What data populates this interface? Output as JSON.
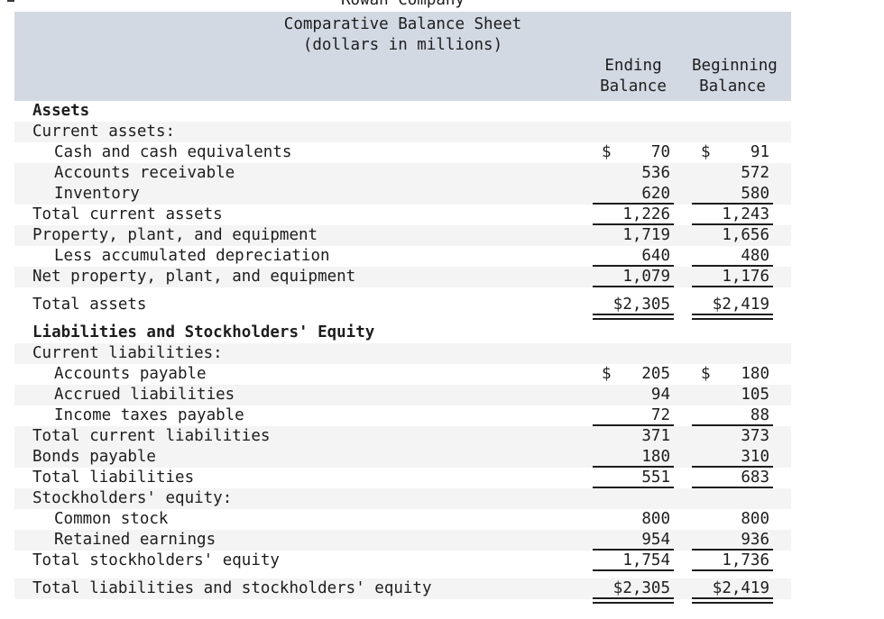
{
  "header": {
    "company": "Rowan Company",
    "title": "Comparative Balance Sheet",
    "subtitle": "(dollars in millions)"
  },
  "columns": {
    "ending": [
      "Ending",
      "Balance"
    ],
    "beginning": [
      "Beginning",
      "Balance"
    ]
  },
  "colors": {
    "header_band": "#d3d9e3",
    "row_shade": "#f4f4f5",
    "text": "#1d1d1d",
    "rule": "#1d1d1d"
  },
  "rows": [
    {
      "label": "Assets",
      "indent": 0,
      "bold": true,
      "shaded": false,
      "gap_before": false,
      "underline": "none",
      "ending": null,
      "beginning": null
    },
    {
      "label": "Current assets:",
      "indent": 0,
      "bold": false,
      "shaded": true,
      "gap_before": false,
      "underline": "none",
      "ending": null,
      "beginning": null
    },
    {
      "label": "Cash and cash equivalents",
      "indent": 1,
      "bold": false,
      "shaded": false,
      "gap_before": false,
      "underline": "none",
      "ending": {
        "dollar": true,
        "value": "70"
      },
      "beginning": {
        "dollar": true,
        "value": "91"
      }
    },
    {
      "label": "Accounts receivable",
      "indent": 1,
      "bold": false,
      "shaded": true,
      "gap_before": false,
      "underline": "none",
      "ending": {
        "dollar": false,
        "value": "536"
      },
      "beginning": {
        "dollar": false,
        "value": "572"
      }
    },
    {
      "label": "Inventory",
      "indent": 1,
      "bold": false,
      "shaded": true,
      "gap_before": false,
      "underline": "single",
      "ending": {
        "dollar": false,
        "value": "620"
      },
      "beginning": {
        "dollar": false,
        "value": "580"
      }
    },
    {
      "label": "Total current assets",
      "indent": 0,
      "bold": false,
      "shaded": false,
      "gap_before": false,
      "underline": "single",
      "ending": {
        "dollar": false,
        "value": "1,226"
      },
      "beginning": {
        "dollar": false,
        "value": "1,243"
      }
    },
    {
      "label": "Property, plant, and equipment",
      "indent": 0,
      "bold": false,
      "shaded": true,
      "gap_before": false,
      "underline": "none",
      "ending": {
        "dollar": false,
        "value": "1,719"
      },
      "beginning": {
        "dollar": false,
        "value": "1,656"
      }
    },
    {
      "label": "Less accumulated depreciation",
      "indent": 1,
      "bold": false,
      "shaded": false,
      "gap_before": false,
      "underline": "single",
      "ending": {
        "dollar": false,
        "value": "640"
      },
      "beginning": {
        "dollar": false,
        "value": "480"
      }
    },
    {
      "label": "Net property, plant, and equipment",
      "indent": 0,
      "bold": false,
      "shaded": true,
      "gap_before": false,
      "underline": "single",
      "ending": {
        "dollar": false,
        "value": "1,079"
      },
      "beginning": {
        "dollar": false,
        "value": "1,176"
      }
    },
    {
      "label": "Total assets",
      "indent": 0,
      "bold": false,
      "shaded": false,
      "gap_before": true,
      "underline": "double",
      "ending": {
        "dollar": false,
        "value": "$2,305"
      },
      "beginning": {
        "dollar": false,
        "value": "$2,419"
      }
    },
    {
      "label": "Liabilities and Stockholders' Equity",
      "indent": 0,
      "bold": true,
      "shaded": false,
      "gap_before": true,
      "underline": "none",
      "ending": null,
      "beginning": null
    },
    {
      "label": "Current liabilities:",
      "indent": 0,
      "bold": false,
      "shaded": true,
      "gap_before": false,
      "underline": "none",
      "ending": null,
      "beginning": null
    },
    {
      "label": "Accounts payable",
      "indent": 1,
      "bold": false,
      "shaded": false,
      "gap_before": false,
      "underline": "none",
      "ending": {
        "dollar": true,
        "value": "205"
      },
      "beginning": {
        "dollar": true,
        "value": "180"
      }
    },
    {
      "label": "Accrued liabilities",
      "indent": 1,
      "bold": false,
      "shaded": true,
      "gap_before": false,
      "underline": "none",
      "ending": {
        "dollar": false,
        "value": "94"
      },
      "beginning": {
        "dollar": false,
        "value": "105"
      }
    },
    {
      "label": "Income taxes payable",
      "indent": 1,
      "bold": false,
      "shaded": false,
      "gap_before": false,
      "underline": "single",
      "ending": {
        "dollar": false,
        "value": "72"
      },
      "beginning": {
        "dollar": false,
        "value": "88"
      }
    },
    {
      "label": "Total current liabilities",
      "indent": 0,
      "bold": false,
      "shaded": true,
      "gap_before": false,
      "underline": "none",
      "ending": {
        "dollar": false,
        "value": "371"
      },
      "beginning": {
        "dollar": false,
        "value": "373"
      }
    },
    {
      "label": "Bonds payable",
      "indent": 0,
      "bold": false,
      "shaded": true,
      "gap_before": false,
      "underline": "single",
      "ending": {
        "dollar": false,
        "value": "180"
      },
      "beginning": {
        "dollar": false,
        "value": "310"
      }
    },
    {
      "label": "Total liabilities",
      "indent": 0,
      "bold": false,
      "shaded": false,
      "gap_before": false,
      "underline": "single",
      "ending": {
        "dollar": false,
        "value": "551"
      },
      "beginning": {
        "dollar": false,
        "value": "683"
      }
    },
    {
      "label": "Stockholders' equity:",
      "indent": 0,
      "bold": false,
      "shaded": true,
      "gap_before": false,
      "underline": "none",
      "ending": null,
      "beginning": null
    },
    {
      "label": "Common stock",
      "indent": 1,
      "bold": false,
      "shaded": false,
      "gap_before": false,
      "underline": "none",
      "ending": {
        "dollar": false,
        "value": "800"
      },
      "beginning": {
        "dollar": false,
        "value": "800"
      }
    },
    {
      "label": "Retained earnings",
      "indent": 1,
      "bold": false,
      "shaded": true,
      "gap_before": false,
      "underline": "single",
      "ending": {
        "dollar": false,
        "value": "954"
      },
      "beginning": {
        "dollar": false,
        "value": "936"
      }
    },
    {
      "label": "Total stockholders' equity",
      "indent": 0,
      "bold": false,
      "shaded": false,
      "gap_before": false,
      "underline": "single",
      "ending": {
        "dollar": false,
        "value": "1,754"
      },
      "beginning": {
        "dollar": false,
        "value": "1,736"
      }
    },
    {
      "label": "Total liabilities and stockholders' equity",
      "indent": 0,
      "bold": false,
      "shaded": true,
      "gap_before": true,
      "underline": "double",
      "ending": {
        "dollar": false,
        "value": "$2,305"
      },
      "beginning": {
        "dollar": false,
        "value": "$2,419"
      }
    }
  ]
}
